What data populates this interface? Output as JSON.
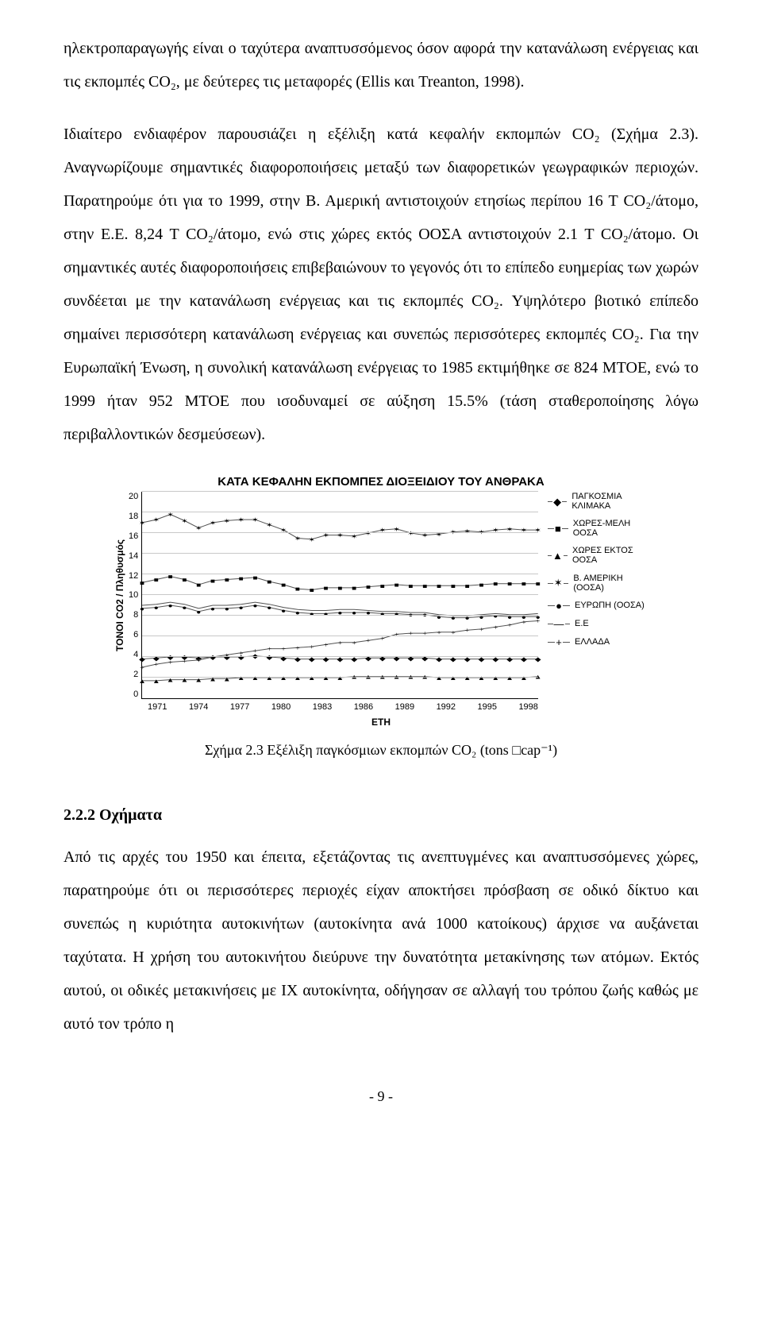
{
  "paragraph1": "ηλεκτροπαραγωγής είναι ο ταχύτερα αναπτυσσόμενος όσον αφορά την κατανάλωση ενέργειας και τις εκπομπές CO₂, με δεύτερες τις μεταφορές (Ellis και Treanton, 1998).",
  "paragraph2": "Ιδιαίτερο ενδιαφέρον παρουσιάζει η εξέλιξη κατά κεφαλήν εκπομπών CO₂ (Σχήμα 2.3). Αναγνωρίζουμε σημαντικές διαφοροποιήσεις μεταξύ των διαφορετικών γεωγραφικών περιοχών. Παρατηρούμε ότι για το 1999, στην Β. Αμερική αντιστοιχούν ετησίως περίπου 16 Τ CO₂/άτομο, στην Ε.Ε. 8,24 Τ CO₂/άτομο, ενώ στις χώρες εκτός ΟΟΣΑ αντιστοιχούν 2.1 Τ CO₂/άτομο. Οι σημαντικές αυτές διαφοροποιήσεις επιβεβαιώνουν το γεγονός ότι το επίπεδο ευημερίας των χωρών συνδέεται με την κατανάλωση ενέργειας και τις εκπομπές CO₂. Υψηλότερο βιοτικό επίπεδο σημαίνει περισσότερη κατανάλωση ενέργειας και συνεπώς περισσότερες εκπομπές CO₂. Για την Ευρωπαϊκή Ένωση, η συνολική κατανάλωση ενέργειας το 1985 εκτιμήθηκε σε 824 ΜΤΟΕ, ενώ το 1999 ήταν 952 ΜΤΟΕ που ισοδυναμεί σε αύξηση 15.5% (τάση σταθεροποίησης λόγω περιβαλλοντικών δεσμεύσεων).",
  "chart": {
    "type": "line",
    "title": "ΚΑΤΑ ΚΕΦΑΛΗΝ ΕΚΠΟΜΠΕΣ ΔΙΟΞΕΙΔΙΟΥ ΤΟΥ ΑΝΘΡΑΚΑ",
    "y_label": "ΤΟΝΟΙ CO2 / Πληθυσμός",
    "x_label": "ΕΤΗ",
    "y_ticks": [
      "20",
      "18",
      "16",
      "14",
      "12",
      "10",
      "8",
      "6",
      "4",
      "2",
      "0"
    ],
    "y_min": 0,
    "y_max": 20,
    "x_ticks": [
      "1971",
      "1974",
      "1977",
      "1980",
      "1983",
      "1986",
      "1989",
      "1992",
      "1995",
      "1998"
    ],
    "x_years": [
      1971,
      1972,
      1973,
      1974,
      1975,
      1976,
      1977,
      1978,
      1979,
      1980,
      1981,
      1982,
      1983,
      1984,
      1985,
      1986,
      1987,
      1988,
      1989,
      1990,
      1991,
      1992,
      1993,
      1994,
      1995,
      1996,
      1997,
      1998,
      1999
    ],
    "grid_color": "#c8c8c8",
    "line_color": "#555555",
    "background_color": "#ffffff",
    "series": [
      {
        "name": "ΠΑΓΚΟΣΜΙΑ ΚΛΙΜΑΚΑ",
        "marker": "◆",
        "values": [
          3.8,
          3.9,
          4.0,
          4.0,
          3.9,
          4.0,
          4.0,
          4.0,
          4.1,
          4.0,
          3.9,
          3.8,
          3.8,
          3.8,
          3.8,
          3.8,
          3.9,
          3.9,
          3.9,
          3.9,
          3.9,
          3.8,
          3.8,
          3.8,
          3.8,
          3.8,
          3.8,
          3.8,
          3.8
        ]
      },
      {
        "name": "ΧΩΡΕΣ-ΜΕΛΗ ΟΟΣΑ",
        "marker": "■",
        "values": [
          11.2,
          11.5,
          11.8,
          11.5,
          11.0,
          11.4,
          11.5,
          11.6,
          11.7,
          11.3,
          11.0,
          10.6,
          10.5,
          10.7,
          10.7,
          10.7,
          10.8,
          10.9,
          11.0,
          10.9,
          10.9,
          10.9,
          10.9,
          10.9,
          11.0,
          11.1,
          11.1,
          11.1,
          11.1
        ]
      },
      {
        "name": "ΧΩΡΕΣ ΕΚΤΟΣ ΟΟΣΑ",
        "marker": "▲",
        "values": [
          1.7,
          1.7,
          1.8,
          1.8,
          1.8,
          1.9,
          1.9,
          2.0,
          2.0,
          2.0,
          2.0,
          2.0,
          2.0,
          2.0,
          2.0,
          2.1,
          2.1,
          2.1,
          2.1,
          2.1,
          2.1,
          2.0,
          2.0,
          2.0,
          2.0,
          2.0,
          2.0,
          2.0,
          2.1
        ]
      },
      {
        "name": "Β. ΑΜΕΡΙΚΗ (ΟΟΣΑ)",
        "marker": "✶",
        "values": [
          17.0,
          17.3,
          17.8,
          17.2,
          16.5,
          17.0,
          17.2,
          17.3,
          17.3,
          16.8,
          16.3,
          15.5,
          15.4,
          15.8,
          15.8,
          15.7,
          16.0,
          16.3,
          16.4,
          16.0,
          15.8,
          15.9,
          16.1,
          16.2,
          16.1,
          16.3,
          16.4,
          16.3,
          16.3
        ]
      },
      {
        "name": "ΕΥΡΩΠΗ (ΟΟΣΑ)",
        "marker": "●",
        "values": [
          8.7,
          8.8,
          9.0,
          8.8,
          8.4,
          8.7,
          8.7,
          8.8,
          9.0,
          8.8,
          8.5,
          8.3,
          8.2,
          8.2,
          8.3,
          8.3,
          8.3,
          8.2,
          8.2,
          8.1,
          8.1,
          7.9,
          7.8,
          7.8,
          7.9,
          8.0,
          7.9,
          7.9,
          7.9
        ]
      },
      {
        "name": "Ε.Ε",
        "marker": "",
        "values": [
          9.0,
          9.1,
          9.3,
          9.1,
          8.7,
          9.0,
          9.0,
          9.1,
          9.3,
          9.1,
          8.8,
          8.6,
          8.5,
          8.5,
          8.6,
          8.6,
          8.5,
          8.4,
          8.4,
          8.3,
          8.3,
          8.1,
          8.0,
          8.0,
          8.1,
          8.2,
          8.1,
          8.1,
          8.2
        ]
      },
      {
        "name": "ΕΛΛΑΔΑ",
        "marker": "+",
        "values": [
          3.0,
          3.3,
          3.5,
          3.6,
          3.7,
          4.0,
          4.2,
          4.4,
          4.6,
          4.8,
          4.8,
          4.9,
          5.0,
          5.2,
          5.4,
          5.4,
          5.6,
          5.8,
          6.2,
          6.3,
          6.3,
          6.4,
          6.4,
          6.6,
          6.7,
          6.9,
          7.1,
          7.4,
          7.5
        ]
      }
    ]
  },
  "caption": "Σχήμα 2.3 Εξέλιξη παγκόσμιων εκπομπών CO₂ (tons □cap⁻¹)",
  "section_heading": "2.2.2 Οχήματα",
  "paragraph3": "Από τις αρχές του 1950 και έπειτα, εξετάζοντας τις ανεπτυγμένες και αναπτυσσόμενες χώρες, παρατηρούμε ότι οι περισσότερες περιοχές είχαν αποκτήσει πρόσβαση σε οδικό δίκτυο και συνεπώς η κυριότητα αυτοκινήτων (αυτοκίνητα ανά 1000 κατοίκους) άρχισε να αυξάνεται ταχύτατα. Η χρήση του αυτοκινήτου διεύρυνε την δυνατότητα μετακίνησης των ατόμων. Εκτός αυτού, οι οδικές μετακινήσεις με ΙΧ αυτοκίνητα, οδήγησαν σε αλλαγή του τρόπου ζωής καθώς με αυτό τον τρόπο η",
  "page_number": "- 9 -"
}
